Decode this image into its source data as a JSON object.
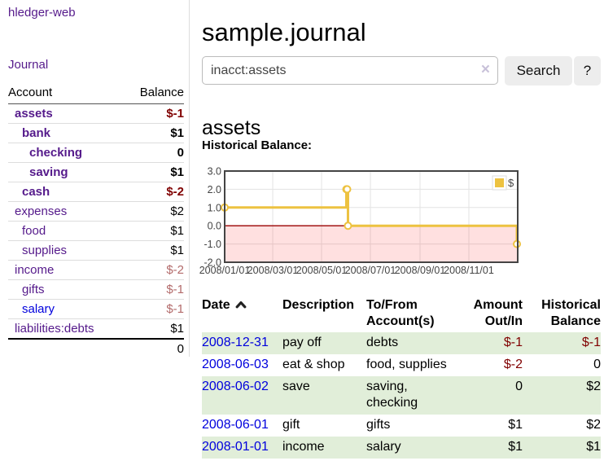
{
  "colors": {
    "link_purple": "#551a8b",
    "link_blue": "#0000dd",
    "negative_strong": "#800000",
    "negative_muted": "#b36b6b",
    "row_green": "#e1eed9",
    "accent_gold": "#edc240"
  },
  "brand": "hledger-web",
  "nav": {
    "journal": "Journal"
  },
  "sidebar": {
    "account_header": "Account",
    "balance_header": "Balance",
    "accounts": [
      {
        "name": "assets",
        "balance": "$-1",
        "level": 0,
        "bold": true,
        "balance_tone": "negative-strong",
        "link_tone": "purple"
      },
      {
        "name": "bank",
        "balance": "$1",
        "level": 1,
        "bold": true,
        "balance_tone": "normal",
        "link_tone": "purple"
      },
      {
        "name": "checking",
        "balance": "0",
        "level": 2,
        "bold": true,
        "balance_tone": "normal",
        "link_tone": "purple"
      },
      {
        "name": "saving",
        "balance": "$1",
        "level": 2,
        "bold": true,
        "balance_tone": "normal",
        "link_tone": "purple"
      },
      {
        "name": "cash",
        "balance": "$-2",
        "level": 1,
        "bold": true,
        "balance_tone": "negative-strong",
        "link_tone": "purple"
      },
      {
        "name": "expenses",
        "balance": "$2",
        "level": 0,
        "bold": false,
        "balance_tone": "normal",
        "link_tone": "purple"
      },
      {
        "name": "food",
        "balance": "$1",
        "level": 1,
        "bold": false,
        "balance_tone": "normal",
        "link_tone": "purple"
      },
      {
        "name": "supplies",
        "balance": "$1",
        "level": 1,
        "bold": false,
        "balance_tone": "normal",
        "link_tone": "purple"
      },
      {
        "name": "income",
        "balance": "$-2",
        "level": 0,
        "bold": false,
        "balance_tone": "negative-muted",
        "link_tone": "purple"
      },
      {
        "name": "gifts",
        "balance": "$-1",
        "level": 1,
        "bold": false,
        "balance_tone": "negative-muted",
        "link_tone": "purple"
      },
      {
        "name": "salary",
        "balance": "$-1",
        "level": 1,
        "bold": false,
        "balance_tone": "negative-muted",
        "link_tone": "blue"
      },
      {
        "name": "liabilities:debts",
        "balance": "$1",
        "level": 0,
        "bold": false,
        "balance_tone": "normal",
        "link_tone": "purple"
      }
    ],
    "total": "0"
  },
  "header": {
    "title": "sample.journal"
  },
  "search": {
    "value": "inacct:assets",
    "clear_label": "×",
    "button_label": "Search",
    "help_label": "?"
  },
  "account_page": {
    "heading": "assets",
    "chart_title": "Historical Balance:"
  },
  "chart_data": {
    "type": "line",
    "step": true,
    "title": "Historical Balance",
    "series": [
      {
        "name": "$",
        "color": "#edc240",
        "points": [
          [
            "2008-01-01",
            1
          ],
          [
            "2008-06-01",
            2
          ],
          [
            "2008-06-02",
            2
          ],
          [
            "2008-06-03",
            0
          ],
          [
            "2008-12-31",
            -1
          ]
        ]
      }
    ],
    "xlim": [
      "2008-01-01",
      "2009-01-01"
    ],
    "ylim": [
      -2,
      3
    ],
    "x_ticks": [
      {
        "date": "2008-01-01",
        "label": "2008/01/01"
      },
      {
        "date": "2008-03-01",
        "label": "2008/03/01"
      },
      {
        "date": "2008-05-01",
        "label": "2008/05/01"
      },
      {
        "date": "2008-07-01",
        "label": "2008/07/01"
      },
      {
        "date": "2008-09-01",
        "label": "2008/09/01"
      },
      {
        "date": "2008-11-01",
        "label": "2008/11/01"
      }
    ],
    "y_ticks": [
      {
        "value": 3,
        "label": "3.0"
      },
      {
        "value": 2,
        "label": "2.0"
      },
      {
        "value": 1,
        "label": "1.0"
      },
      {
        "value": 0,
        "label": "0.0"
      },
      {
        "value": -1,
        "label": "-1.0"
      },
      {
        "value": -2,
        "label": "-2.0"
      }
    ],
    "legend": {
      "label": "$",
      "position": "top-right"
    },
    "grid": true,
    "negative_band": {
      "from": 0,
      "to": -2,
      "color": "rgba(255,0,0,0.12)"
    },
    "zero_line_color": "#990000",
    "border_color": "#444",
    "grid_color": "#e3e3e3",
    "tick_label_color": "#444"
  },
  "register": {
    "columns": [
      "Date",
      "Description",
      "To/From Account(s)",
      "Amount Out/In",
      "Historical Balance"
    ],
    "sort_icon": "chevron-up",
    "rows": [
      {
        "date": "2008-12-31",
        "description": "pay off",
        "accounts": "debts",
        "amount": "$-1",
        "amount_tone": "negative-strong",
        "balance": "$-1",
        "balance_tone": "negative-strong"
      },
      {
        "date": "2008-06-03",
        "description": "eat & shop",
        "accounts": "food, supplies",
        "amount": "$-2",
        "amount_tone": "negative-strong",
        "balance": "0",
        "balance_tone": "normal"
      },
      {
        "date": "2008-06-02",
        "description": "save",
        "accounts": "saving, checking",
        "amount": "0",
        "amount_tone": "normal",
        "balance": "$2",
        "balance_tone": "normal"
      },
      {
        "date": "2008-06-01",
        "description": "gift",
        "accounts": "gifts",
        "amount": "$1",
        "amount_tone": "normal",
        "balance": "$2",
        "balance_tone": "normal"
      },
      {
        "date": "2008-01-01",
        "description": "income",
        "accounts": "salary",
        "amount": "$1",
        "amount_tone": "normal",
        "balance": "$1",
        "balance_tone": "normal"
      }
    ]
  }
}
